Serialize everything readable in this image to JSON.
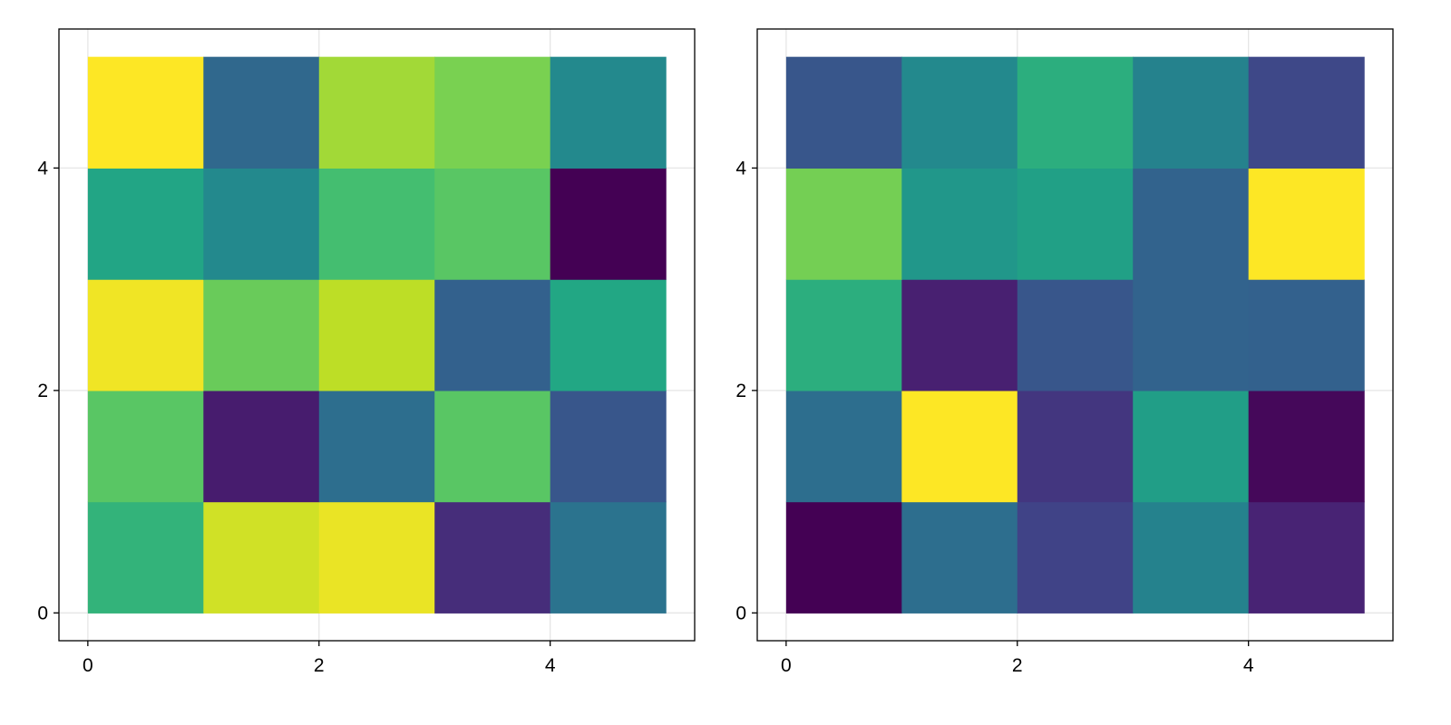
{
  "chart_data": [
    {
      "type": "heatmap",
      "title": "",
      "xlabel": "",
      "ylabel": "",
      "xlim": [
        -0.25,
        5.25
      ],
      "ylim": [
        -0.25,
        5.25
      ],
      "x_edges": [
        0,
        1,
        2,
        3,
        4,
        5
      ],
      "y_edges": [
        0,
        1,
        2,
        3,
        4,
        5
      ],
      "x_ticks": [
        0,
        2,
        4
      ],
      "y_ticks": [
        0,
        2,
        4
      ],
      "x_tick_labels": [
        "0",
        "2",
        "4"
      ],
      "y_tick_labels": [
        "0",
        "2",
        "4"
      ],
      "grid": true,
      "colormap": "viridis",
      "color_range": [
        0,
        1
      ],
      "values_rows_from_bottom": [
        [
          0.65,
          0.93,
          0.97,
          0.13,
          0.38
        ],
        [
          0.74,
          0.08,
          0.36,
          0.74,
          0.27
        ],
        [
          0.98,
          0.77,
          0.9,
          0.31,
          0.6
        ],
        [
          0.59,
          0.47,
          0.7,
          0.74,
          0.0
        ],
        [
          1.0,
          0.34,
          0.86,
          0.8,
          0.47
        ]
      ]
    },
    {
      "type": "heatmap",
      "title": "",
      "xlabel": "",
      "ylabel": "",
      "xlim": [
        -0.25,
        5.25
      ],
      "ylim": [
        -0.25,
        5.25
      ],
      "x_edges": [
        0,
        1,
        2,
        3,
        4,
        5
      ],
      "y_edges": [
        0,
        1,
        2,
        3,
        4,
        5
      ],
      "x_ticks": [
        0,
        2,
        4
      ],
      "y_ticks": [
        0,
        2,
        4
      ],
      "x_tick_labels": [
        "0",
        "2",
        "4"
      ],
      "y_tick_labels": [
        "0",
        "2",
        "4"
      ],
      "grid": true,
      "colormap": "viridis",
      "color_range": [
        0,
        1
      ],
      "values_rows_from_bottom": [
        [
          0.0,
          0.36,
          0.2,
          0.44,
          0.1
        ],
        [
          0.36,
          1.0,
          0.16,
          0.56,
          0.02
        ],
        [
          0.63,
          0.09,
          0.27,
          0.32,
          0.31
        ],
        [
          0.79,
          0.53,
          0.57,
          0.32,
          1.0
        ],
        [
          0.27,
          0.47,
          0.63,
          0.44,
          0.22
        ]
      ]
    }
  ]
}
